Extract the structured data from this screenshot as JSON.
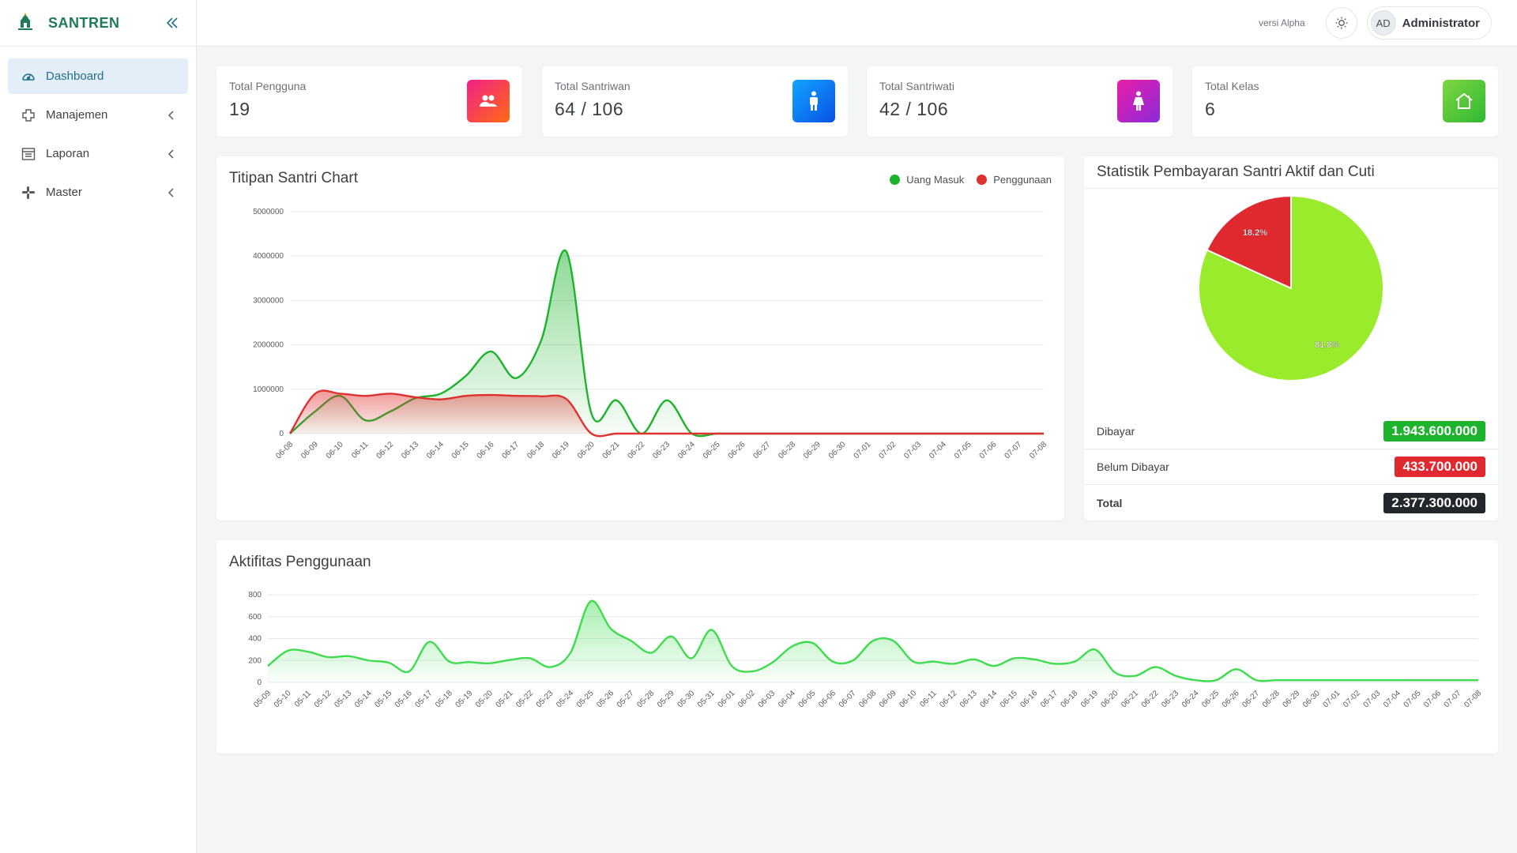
{
  "app": {
    "name": "SANTREN",
    "logo_text": "SANTREN"
  },
  "sidebar": {
    "items": [
      {
        "label": "Dashboard",
        "icon": "gauge-icon",
        "active": true
      },
      {
        "label": "Manajemen",
        "icon": "puzzle-icon"
      },
      {
        "label": "Laporan",
        "icon": "report-icon"
      },
      {
        "label": "Master",
        "icon": "slack-icon"
      }
    ]
  },
  "header": {
    "version": "versi Alpha",
    "user_initials": "AD",
    "user_name": "Administrator"
  },
  "stats": [
    {
      "label": "Total Pengguna",
      "value": "19",
      "icon": "users-icon",
      "color": "#f13a60"
    },
    {
      "label": "Total Santriwan",
      "value": "64 / 106",
      "icon": "male-icon",
      "color": "#1c7cf0"
    },
    {
      "label": "Total Santriwati",
      "value": "42 / 106",
      "icon": "female-icon",
      "color": "#c920c0"
    },
    {
      "label": "Total Kelas",
      "value": "6",
      "icon": "home-icon",
      "color": "#4fc63a"
    }
  ],
  "titipan": {
    "title": "Titipan Santri Chart",
    "legend": {
      "masuk": "Uang Masuk",
      "penggunaan": "Penggunaan"
    }
  },
  "statistik": {
    "title": "Statistik Pembayaran Santri Aktif dan Cuti",
    "dibayar_label": "Dibayar",
    "dibayar_value": "1.943.600.000",
    "belum_label": "Belum Dibayar",
    "belum_value": "433.700.000",
    "total_label": "Total",
    "total_value": "2.377.300.000"
  },
  "aktifitas": {
    "title": "Aktifitas Penggunaan"
  },
  "chart_data": [
    {
      "type": "area",
      "title": "Titipan Santri Chart",
      "x": [
        "06-08",
        "06-09",
        "06-10",
        "06-11",
        "06-12",
        "06-13",
        "06-14",
        "06-15",
        "06-16",
        "06-17",
        "06-18",
        "06-19",
        "06-20",
        "06-21",
        "06-22",
        "06-23",
        "06-24",
        "06-25",
        "06-26",
        "06-27",
        "06-28",
        "06-29",
        "06-30",
        "07-01",
        "07-02",
        "07-03",
        "07-04",
        "07-05",
        "07-06",
        "07-07",
        "07-08"
      ],
      "yticks": [
        "0",
        "1000000",
        "2000000",
        "3000000",
        "4000000",
        "5000000"
      ],
      "ylim": [
        0,
        5000000
      ],
      "legend": "top-right",
      "series": [
        {
          "name": "Uang Masuk",
          "color": "#1db32c",
          "values": [
            0,
            500000,
            850000,
            300000,
            500000,
            800000,
            900000,
            1300000,
            1850000,
            1250000,
            2100000,
            4100000,
            450000,
            750000,
            0,
            750000,
            0,
            0,
            0,
            0,
            0,
            0,
            0,
            0,
            0,
            0,
            0,
            0,
            0,
            0,
            0
          ]
        },
        {
          "name": "Penggunaan",
          "color": "#e03131",
          "values": [
            0,
            900000,
            900000,
            850000,
            900000,
            820000,
            770000,
            850000,
            870000,
            850000,
            840000,
            780000,
            0,
            0,
            0,
            0,
            0,
            0,
            0,
            0,
            0,
            0,
            0,
            0,
            0,
            0,
            0,
            0,
            0,
            0,
            0
          ]
        }
      ]
    },
    {
      "type": "pie",
      "title": "Statistik Pembayaran Santri Aktif dan Cuti",
      "labels": [
        "18.2%",
        "81.8%"
      ],
      "values": [
        18.2,
        81.8
      ],
      "colors": [
        "#e0282f",
        "#9beb2d"
      ]
    },
    {
      "type": "area",
      "title": "Aktifitas Penggunaan",
      "x": [
        "05-09",
        "05-10",
        "05-11",
        "05-12",
        "05-13",
        "05-14",
        "05-15",
        "05-16",
        "05-17",
        "05-18",
        "05-19",
        "05-20",
        "05-21",
        "05-22",
        "05-23",
        "05-24",
        "05-25",
        "05-26",
        "05-27",
        "05-28",
        "05-29",
        "05-30",
        "05-31",
        "06-01",
        "06-02",
        "06-03",
        "06-04",
        "06-05",
        "06-06",
        "06-07",
        "06-08",
        "06-09",
        "06-10",
        "06-11",
        "06-12",
        "06-13",
        "06-14",
        "06-15",
        "06-16",
        "06-17",
        "06-18",
        "06-19",
        "06-20",
        "06-21",
        "06-22",
        "06-23",
        "06-24",
        "06-25",
        "06-26",
        "06-27",
        "06-28",
        "06-29",
        "06-30",
        "07-01",
        "07-02",
        "07-03",
        "07-04",
        "07-05",
        "07-06",
        "07-07",
        "07-08"
      ],
      "yticks": [
        "0",
        "200",
        "400",
        "600",
        "800"
      ],
      "ylim": [
        0,
        800
      ],
      "series": [
        {
          "name": "",
          "color": "#3fdc4f",
          "values": [
            150,
            290,
            280,
            230,
            240,
            200,
            180,
            100,
            370,
            190,
            185,
            175,
            205,
            220,
            140,
            270,
            740,
            490,
            380,
            270,
            420,
            220,
            480,
            150,
            100,
            180,
            330,
            360,
            190,
            200,
            380,
            380,
            190,
            190,
            170,
            210,
            150,
            220,
            210,
            170,
            190,
            300,
            90,
            60,
            140,
            60,
            20,
            20,
            120,
            20,
            20,
            20,
            20,
            20,
            20,
            20,
            20,
            20,
            20,
            20,
            20
          ]
        }
      ]
    }
  ]
}
